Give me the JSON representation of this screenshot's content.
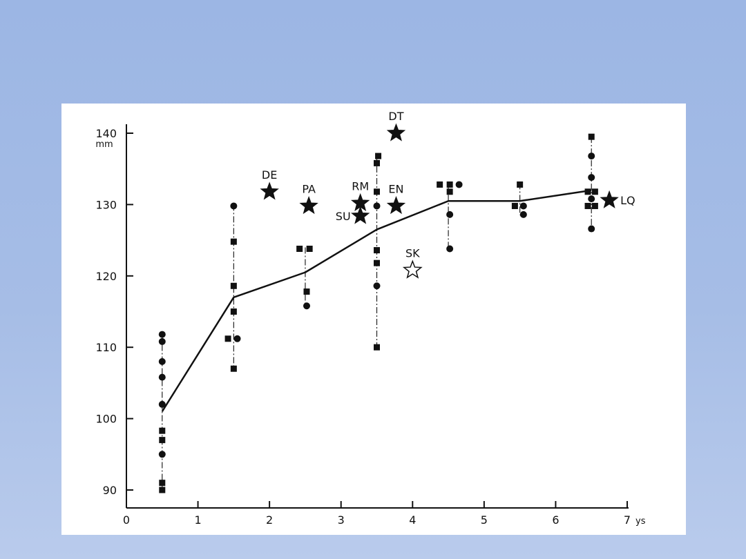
{
  "chart_data": {
    "type": "scatter",
    "title": "",
    "xlabel": "ys",
    "ylabel": "mm",
    "xlim": [
      0,
      7
    ],
    "ylim": [
      88,
      142
    ],
    "x_ticks": [
      "0",
      "1",
      "2",
      "3",
      "4",
      "5",
      "6",
      "7"
    ],
    "y_ticks": [
      "90",
      "100",
      "110",
      "120",
      "130",
      "140"
    ],
    "grid": false,
    "legend": "none",
    "mean_line": {
      "x": [
        0.5,
        1.5,
        2.5,
        3.5,
        4.5,
        5.5,
        6.5
      ],
      "y": [
        101,
        117,
        120.5,
        126.5,
        130.5,
        130.5,
        132
      ]
    },
    "range_bars": [
      {
        "x": 0.5,
        "low": 90,
        "high": 112
      },
      {
        "x": 1.5,
        "low": 107,
        "high": 130
      },
      {
        "x": 2.5,
        "low": 116,
        "high": 124
      },
      {
        "x": 3.5,
        "low": 110,
        "high": 137
      },
      {
        "x": 4.5,
        "low": 124,
        "high": 133
      },
      {
        "x": 5.5,
        "low": 128.5,
        "high": 133
      },
      {
        "x": 6.5,
        "low": 127,
        "high": 139.5
      }
    ],
    "squares": [
      {
        "x": 0.5,
        "y": 90
      },
      {
        "x": 0.5,
        "y": 91
      },
      {
        "x": 0.5,
        "y": 97
      },
      {
        "x": 0.5,
        "y": 98.3
      },
      {
        "x": 1.5,
        "y": 107
      },
      {
        "x": 1.42,
        "y": 111.2
      },
      {
        "x": 1.5,
        "y": 115
      },
      {
        "x": 1.5,
        "y": 118.6
      },
      {
        "x": 1.5,
        "y": 124.8
      },
      {
        "x": 2.42,
        "y": 123.8
      },
      {
        "x": 2.56,
        "y": 123.8
      },
      {
        "x": 2.52,
        "y": 117.8
      },
      {
        "x": 3.5,
        "y": 110
      },
      {
        "x": 3.5,
        "y": 121.8
      },
      {
        "x": 3.5,
        "y": 123.6
      },
      {
        "x": 3.5,
        "y": 131.8
      },
      {
        "x": 3.5,
        "y": 135.8
      },
      {
        "x": 3.52,
        "y": 136.8
      },
      {
        "x": 4.38,
        "y": 132.8
      },
      {
        "x": 4.52,
        "y": 132.8
      },
      {
        "x": 4.52,
        "y": 131.8
      },
      {
        "x": 5.5,
        "y": 132.8
      },
      {
        "x": 5.43,
        "y": 129.8
      },
      {
        "x": 6.5,
        "y": 139.5
      },
      {
        "x": 6.45,
        "y": 131.8
      },
      {
        "x": 6.55,
        "y": 131.8
      },
      {
        "x": 6.45,
        "y": 129.8
      },
      {
        "x": 6.55,
        "y": 129.8
      }
    ],
    "circles": [
      {
        "x": 0.5,
        "y": 111.8
      },
      {
        "x": 0.5,
        "y": 110.8
      },
      {
        "x": 0.5,
        "y": 108
      },
      {
        "x": 0.5,
        "y": 105.8
      },
      {
        "x": 0.5,
        "y": 102
      },
      {
        "x": 0.5,
        "y": 95
      },
      {
        "x": 1.5,
        "y": 129.8
      },
      {
        "x": 1.55,
        "y": 111.2
      },
      {
        "x": 2.52,
        "y": 115.8
      },
      {
        "x": 3.5,
        "y": 129.8
      },
      {
        "x": 3.5,
        "y": 118.6
      },
      {
        "x": 4.65,
        "y": 132.8
      },
      {
        "x": 4.52,
        "y": 128.6
      },
      {
        "x": 4.52,
        "y": 123.8
      },
      {
        "x": 5.55,
        "y": 129.8
      },
      {
        "x": 5.55,
        "y": 128.6
      },
      {
        "x": 6.5,
        "y": 136.8
      },
      {
        "x": 6.5,
        "y": 133.8
      },
      {
        "x": 6.5,
        "y": 130.8
      },
      {
        "x": 6.5,
        "y": 126.6
      }
    ],
    "stars": [
      {
        "label": "DE",
        "x": 2.0,
        "y": 131.8,
        "filled": true,
        "label_pos": "above"
      },
      {
        "label": "PA",
        "x": 2.55,
        "y": 129.8,
        "filled": true,
        "label_pos": "above"
      },
      {
        "label": "RM",
        "x": 3.27,
        "y": 130.2,
        "filled": true,
        "label_pos": "above"
      },
      {
        "label": "SU",
        "x": 3.27,
        "y": 128.4,
        "filled": true,
        "label_pos": "left"
      },
      {
        "label": "DT",
        "x": 3.77,
        "y": 140,
        "filled": true,
        "label_pos": "above"
      },
      {
        "label": "EN",
        "x": 3.77,
        "y": 129.8,
        "filled": true,
        "label_pos": "above"
      },
      {
        "label": "SK",
        "x": 4.0,
        "y": 120.8,
        "filled": false,
        "label_pos": "above"
      },
      {
        "label": "LQ",
        "x": 6.75,
        "y": 130.6,
        "filled": true,
        "label_pos": "right"
      }
    ]
  }
}
